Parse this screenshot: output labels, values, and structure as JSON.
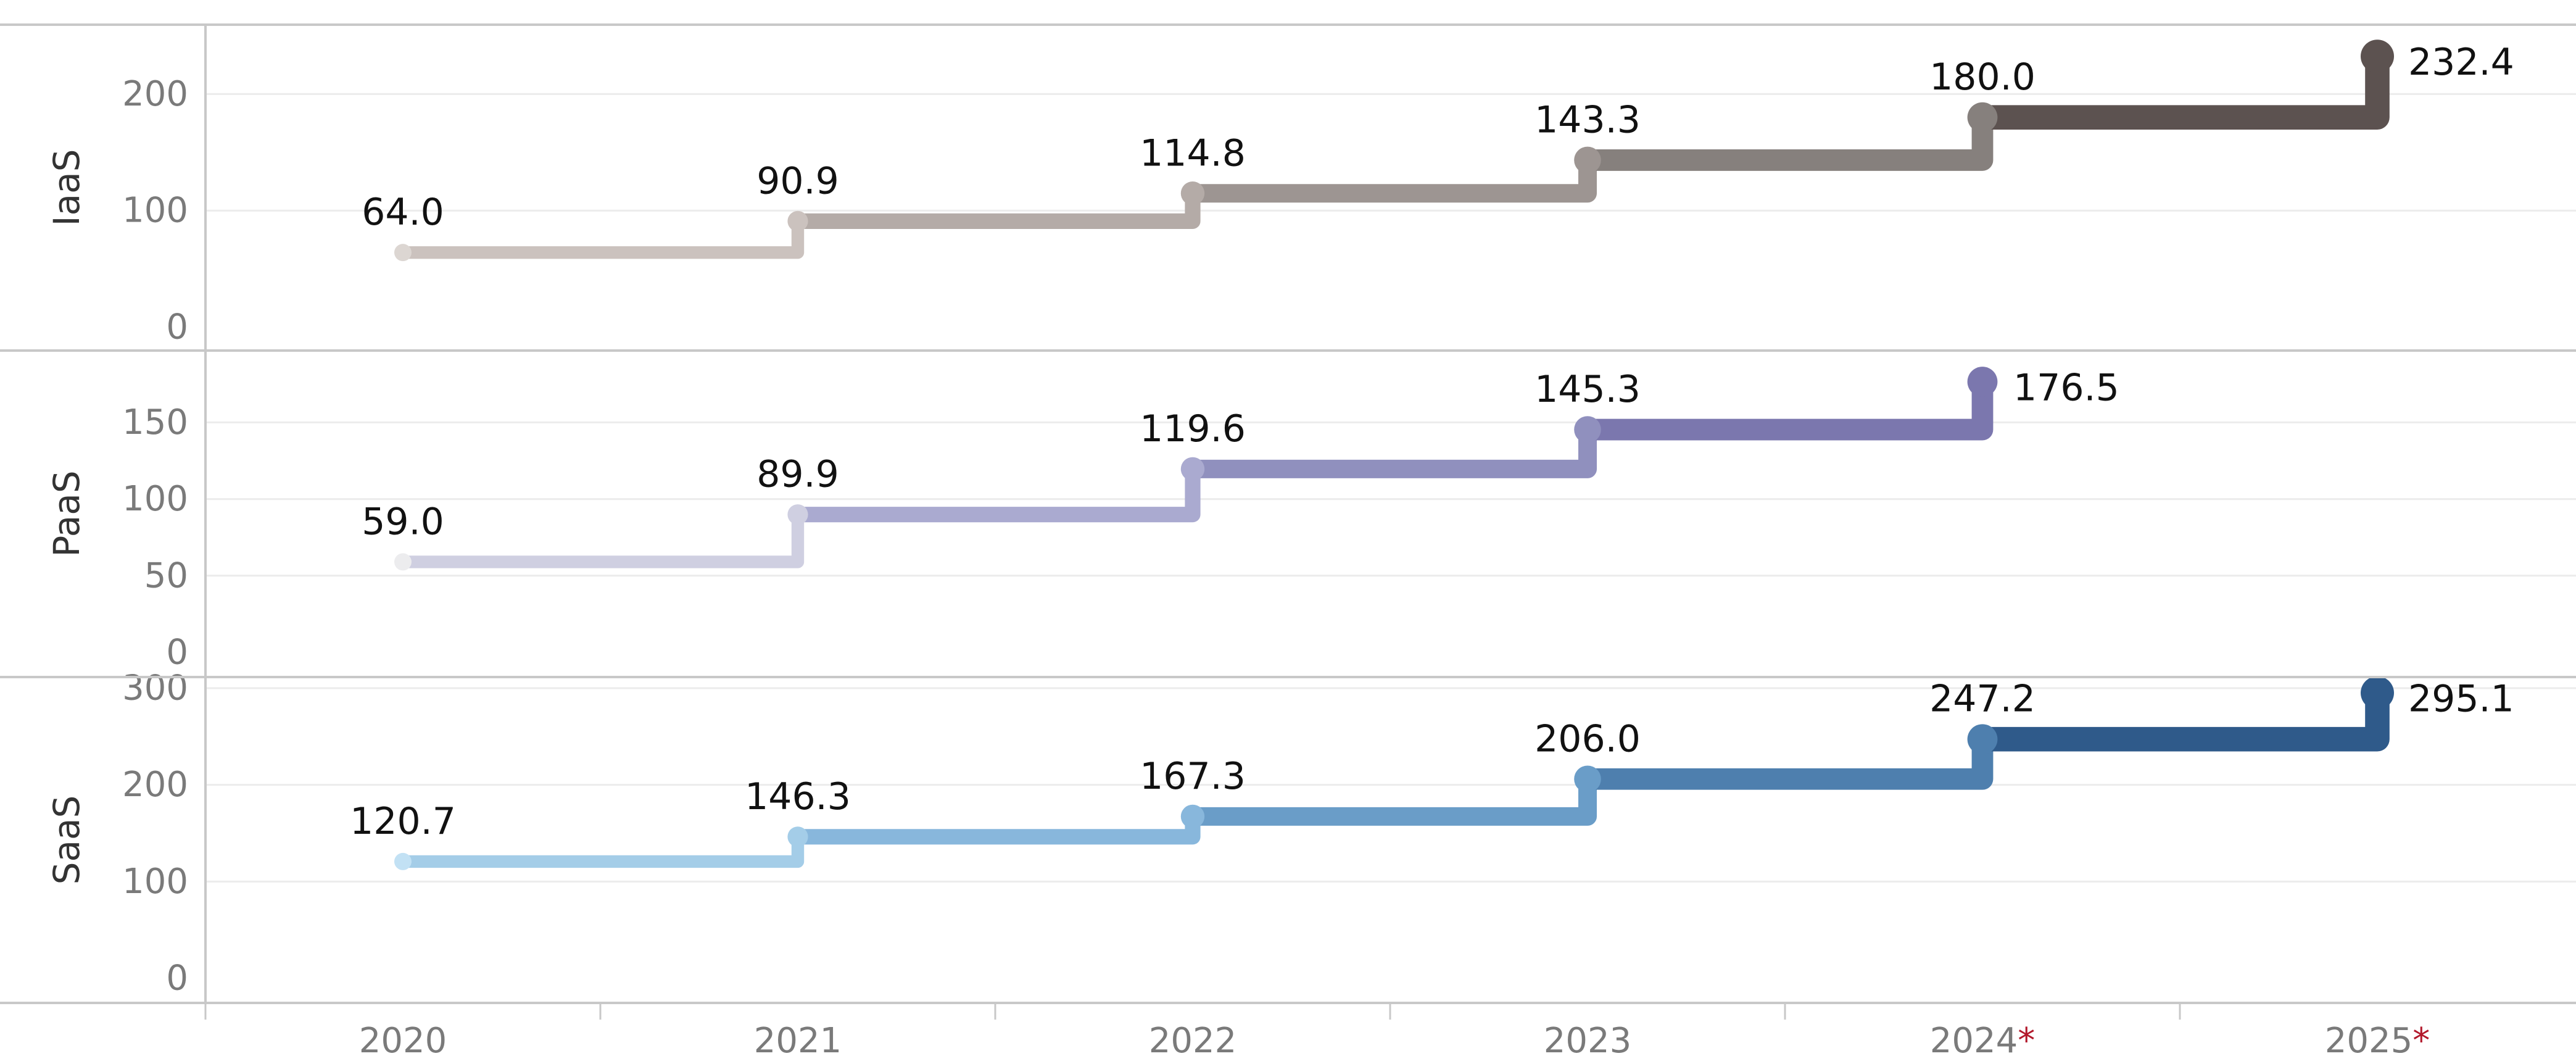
{
  "chart_data": {
    "type": "line",
    "style": "step",
    "x": [
      "2020",
      "2021",
      "2022",
      "2023",
      "2024",
      "2025"
    ],
    "x_labels": [
      {
        "text": "2020",
        "forecast": false
      },
      {
        "text": "2021",
        "forecast": false
      },
      {
        "text": "2022",
        "forecast": false
      },
      {
        "text": "2023",
        "forecast": false
      },
      {
        "text": "2024",
        "forecast": true
      },
      {
        "text": "2025",
        "forecast": true
      }
    ],
    "forecast_marker": "*",
    "title": "",
    "xlabel": "",
    "grid": true,
    "legend": "none",
    "panels": [
      {
        "name": "IaaS",
        "ylim": [
          0,
          250
        ],
        "yticks": [
          0,
          100,
          200
        ],
        "values": [
          64.0,
          90.9,
          114.8,
          143.3,
          180.0,
          232.4
        ],
        "labels": [
          "64.0",
          "90.9",
          "114.8",
          "143.3",
          "180.0",
          "232.4"
        ],
        "colors": [
          "#dcd6d2",
          "#cbc2be",
          "#b4aba7",
          "#9d9592",
          "#86807d",
          "#5c5250"
        ]
      },
      {
        "name": "PaaS",
        "ylim": [
          0,
          190
        ],
        "yticks": [
          0,
          50,
          100,
          150
        ],
        "values": [
          59.0,
          89.9,
          119.6,
          145.3,
          176.5
        ],
        "labels": [
          "59.0",
          "89.9",
          "119.6",
          "145.3",
          "176.5"
        ],
        "colors": [
          "#ececee",
          "#cfcfe1",
          "#aaaad0",
          "#9090be",
          "#7b77ae"
        ]
      },
      {
        "name": "SaaS",
        "ylim": [
          0,
          300
        ],
        "yticks": [
          0,
          100,
          200,
          300
        ],
        "values": [
          120.7,
          146.3,
          167.3,
          206.0,
          247.2,
          295.1
        ],
        "labels": [
          "120.7",
          "146.3",
          "167.3",
          "206.0",
          "247.2",
          "295.1"
        ],
        "colors": [
          "#c2e1f4",
          "#a4cde8",
          "#88b7dc",
          "#6a9dc8",
          "#4e7fae",
          "#2f5a8a"
        ]
      }
    ]
  }
}
